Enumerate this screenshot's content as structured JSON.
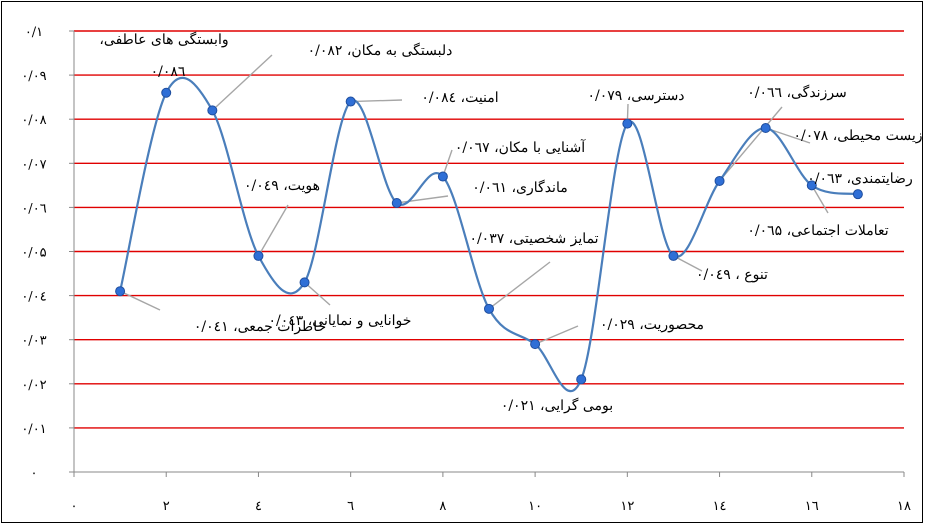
{
  "chart_data": {
    "type": "line",
    "title": "",
    "xlabel": "",
    "ylabel": "",
    "xlim": [
      0,
      18
    ],
    "ylim": [
      0,
      0.1
    ],
    "x_ticks": [
      {
        "v": 0,
        "label": "۰"
      },
      {
        "v": 2,
        "label": "۲"
      },
      {
        "v": 4,
        "label": "٤"
      },
      {
        "v": 6,
        "label": "٦"
      },
      {
        "v": 8,
        "label": "۸"
      },
      {
        "v": 10,
        "label": "۱۰"
      },
      {
        "v": 12,
        "label": "۱۲"
      },
      {
        "v": 14,
        "label": "۱٤"
      },
      {
        "v": 16,
        "label": "۱٦"
      },
      {
        "v": 18,
        "label": "۱۸"
      }
    ],
    "y_ticks": [
      {
        "v": 0,
        "label": "۰"
      },
      {
        "v": 0.01,
        "label": "۰/۰۱"
      },
      {
        "v": 0.02,
        "label": "۰/۰۲"
      },
      {
        "v": 0.03,
        "label": "۰/۰۳"
      },
      {
        "v": 0.04,
        "label": "۰/۰٤"
      },
      {
        "v": 0.05,
        "label": "۰/۰۵"
      },
      {
        "v": 0.06,
        "label": "۰/۰٦"
      },
      {
        "v": 0.07,
        "label": "۰/۰۷"
      },
      {
        "v": 0.08,
        "label": "۰/۰۸"
      },
      {
        "v": 0.09,
        "label": "۰/۰۹"
      },
      {
        "v": 0.1,
        "label": "۰/۱"
      }
    ],
    "grid": "horizontal",
    "grid_color": "#e00000",
    "line_color": "#4a7ebb",
    "marker_color": "#2f6fd6",
    "points": [
      {
        "x": 1,
        "y": 0.041,
        "label": "خاطرات جمعی، ۰/۰٤۱"
      },
      {
        "x": 2,
        "y": 0.086,
        "label": "۰/۰۸٦"
      },
      {
        "x": 3,
        "y": 0.082,
        "label": "دلبستگی به مکان، ۰/۰۸۲"
      },
      {
        "x": 4,
        "y": 0.049,
        "label": "هویت، ۰/۰٤۹"
      },
      {
        "x": 5,
        "y": 0.043,
        "label": "خوانایی و نمایانی، ۰/۰٤۳"
      },
      {
        "x": 6,
        "y": 0.084,
        "label": "امنیت، ۰/۰۸٤"
      },
      {
        "x": 7,
        "y": 0.061,
        "label": "ماندگاری، ۰/۰٦۱"
      },
      {
        "x": 8,
        "y": 0.067,
        "label": "آشنایی با مکان، ۰/۰٦۷"
      },
      {
        "x": 9,
        "y": 0.037,
        "label": "تمایز شخصیتی، ۰/۰۳۷"
      },
      {
        "x": 10,
        "y": 0.029,
        "label": "محصوریت، ۰/۰۲۹"
      },
      {
        "x": 11,
        "y": 0.021,
        "label": "بومی گرایی، ۰/۰۲۱"
      },
      {
        "x": 12,
        "y": 0.079,
        "label": "دسترسی، ۰/۰۷۹"
      },
      {
        "x": 13,
        "y": 0.049,
        "label": "تنوع ، ۰/۰٤۹"
      },
      {
        "x": 14,
        "y": 0.066,
        "label": "سرزندگی، ۰/۰٦٦"
      },
      {
        "x": 15,
        "y": 0.078,
        "label": "زیست محیطی، ۰/۰۷۸"
      },
      {
        "x": 16,
        "y": 0.065,
        "label": "تعاملات اجتماعی، ۰/۰٦۵"
      },
      {
        "x": 17,
        "y": 0.063,
        "label": "رضایتمندی، ۰/۰٦۳"
      }
    ],
    "extra_labels": [
      {
        "text": "وابستگی های عاطفی، ",
        "anchor_point": 2
      }
    ]
  }
}
